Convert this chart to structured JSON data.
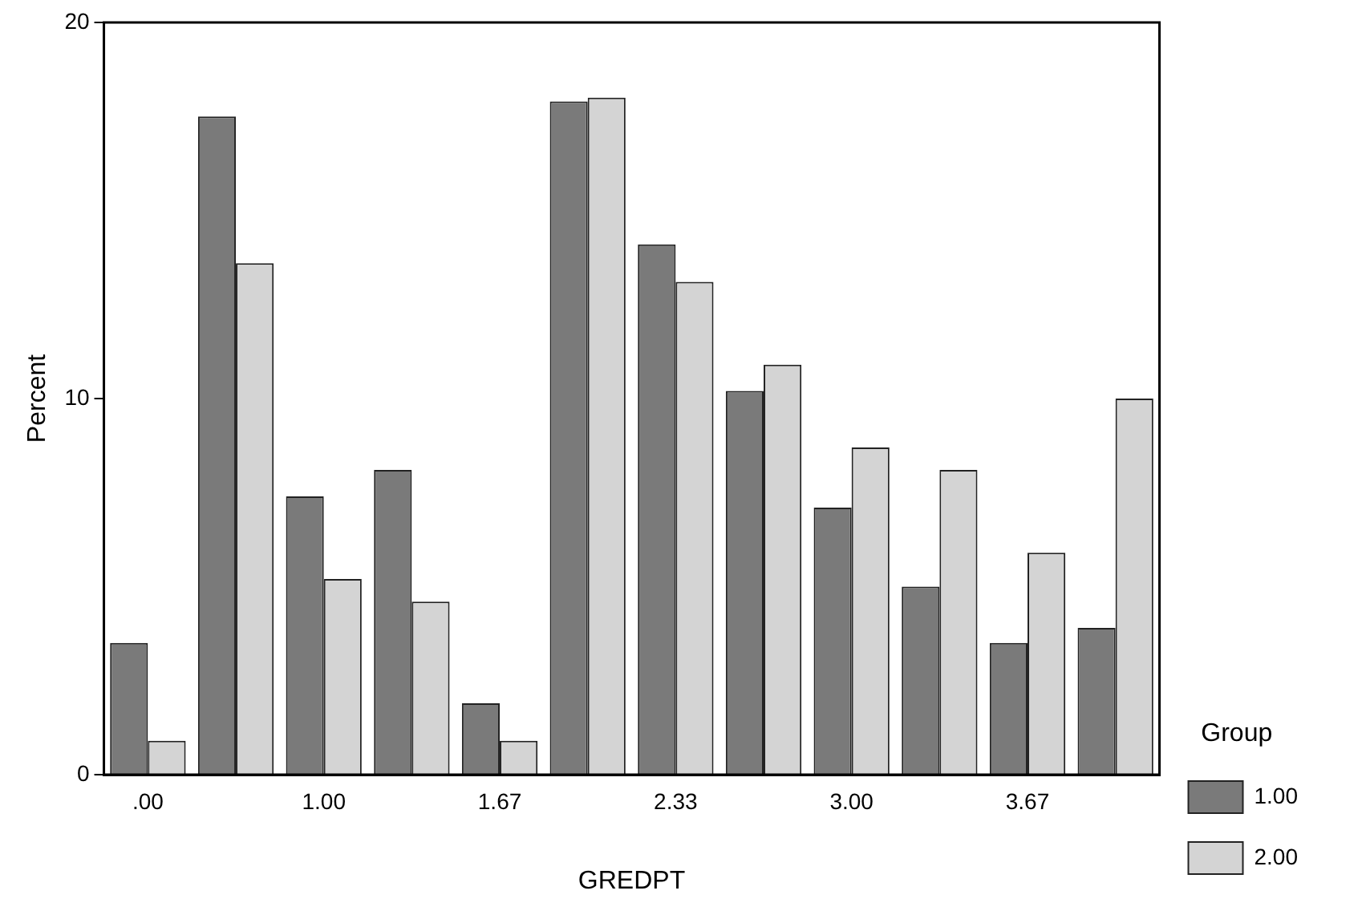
{
  "chart_data": {
    "type": "bar",
    "xlabel": "GREDPT",
    "ylabel": "Percent",
    "legend_title": "Group",
    "legend": "right",
    "categories": [
      ".00",
      null,
      "1.00",
      null,
      "1.67",
      null,
      "2.33",
      null,
      "3.00",
      null,
      "3.67",
      null
    ],
    "series": [
      {
        "name": "1.00",
        "color": "#7a7a7a",
        "values": [
          3.5,
          17.5,
          7.4,
          8.1,
          1.9,
          17.9,
          14.1,
          10.2,
          7.1,
          5.0,
          3.5,
          3.9
        ]
      },
      {
        "name": "2.00",
        "color": "#d4d4d4",
        "values": [
          0.9,
          13.6,
          5.2,
          4.6,
          0.9,
          18.0,
          13.1,
          10.9,
          8.7,
          8.1,
          5.9,
          10.0
        ]
      }
    ],
    "ylim": [
      0,
      20
    ],
    "yticks": [
      0,
      10,
      20
    ],
    "grid": false
  }
}
